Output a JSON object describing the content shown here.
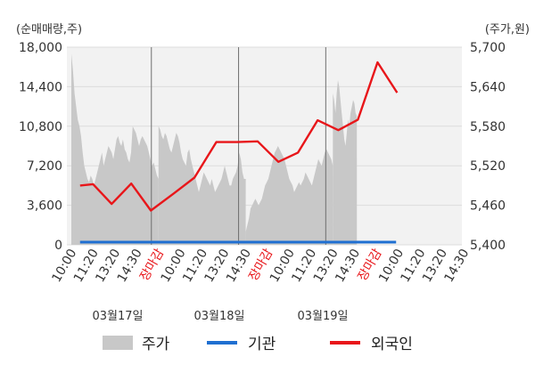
{
  "chart_data": {
    "type": "bar+line",
    "left_axis_label": "(순매매량,주)",
    "right_axis_label": "(주가,원)",
    "left_ticks": [
      "18,000",
      "14,400",
      "10,800",
      "7,200",
      "3,600",
      "0"
    ],
    "left_range": [
      0,
      18000
    ],
    "right_ticks": [
      "5,700",
      "5,640",
      "5,580",
      "5,520",
      "5,460",
      "5,400"
    ],
    "right_range": [
      5400,
      5700
    ],
    "x_ticks": [
      {
        "label": "10:00",
        "red": false
      },
      {
        "label": "11:20",
        "red": false
      },
      {
        "label": "13:20",
        "red": false
      },
      {
        "label": "14:30",
        "red": false
      },
      {
        "label": "장마감",
        "red": true
      },
      {
        "label": "10:00",
        "red": false
      },
      {
        "label": "11:20",
        "red": false
      },
      {
        "label": "13:20",
        "red": false
      },
      {
        "label": "14:30",
        "red": false
      },
      {
        "label": "장마감",
        "red": true
      },
      {
        "label": "10:00",
        "red": false
      },
      {
        "label": "11:20",
        "red": false
      },
      {
        "label": "13:20",
        "red": false
      },
      {
        "label": "14:30",
        "red": false
      },
      {
        "label": "장마감",
        "red": true
      },
      {
        "label": "10:00",
        "red": false
      },
      {
        "label": "11:20",
        "red": false
      },
      {
        "label": "13:20",
        "red": false
      },
      {
        "label": "14:30",
        "red": false
      }
    ],
    "date_labels": [
      "03월17일",
      "03월18일",
      "03월19일"
    ],
    "grid": true,
    "series": [
      {
        "name": "주가",
        "kind": "area",
        "color": "#c8c8c8",
        "days": [
          {
            "range": [
              0,
              4
            ],
            "values": [
              5690,
              5665,
              5630,
              5610,
              5590,
              5580,
              5565,
              5540,
              5520,
              5510,
              5500,
              5495,
              5505,
              5500,
              5490,
              5500,
              5510,
              5520,
              5530,
              5540,
              5520,
              5530,
              5540,
              5550,
              5545,
              5540,
              5530,
              5545,
              5560,
              5565,
              5555,
              5550,
              5560,
              5545,
              5540,
              5530,
              5525,
              5540,
              5580,
              5575,
              5570,
              5560,
              5550,
              5560,
              5565,
              5560,
              5555,
              5550,
              5540,
              5530,
              5520,
              5525,
              5515,
              5505,
              5500
            ]
          },
          {
            "range": [
              4,
              8
            ],
            "values": [
              5580,
              5575,
              5565,
              5560,
              5570,
              5565,
              5555,
              5545,
              5540,
              5550,
              5560,
              5570,
              5565,
              5555,
              5540,
              5530,
              5525,
              5520,
              5540,
              5545,
              5530,
              5520,
              5510,
              5500,
              5490,
              5480,
              5490,
              5500,
              5510,
              5505,
              5500,
              5495,
              5490,
              5500,
              5490,
              5480,
              5485,
              5490,
              5495,
              5500,
              5510,
              5520,
              5510,
              5500,
              5490,
              5490,
              5500,
              5505,
              5510,
              5520,
              5540,
              5530,
              5510,
              5500,
              5500
            ]
          },
          {
            "range": [
              8,
              12
            ],
            "values": [
              5420,
              5430,
              5440,
              5455,
              5460,
              5465,
              5470,
              5465,
              5460,
              5465,
              5470,
              5480,
              5490,
              5495,
              5500,
              5510,
              5520,
              5530,
              5540,
              5545,
              5550,
              5545,
              5540,
              5535,
              5530,
              5520,
              5510,
              5500,
              5495,
              5490,
              5480,
              5485,
              5490,
              5495,
              5490,
              5495,
              5500,
              5510,
              5505,
              5500,
              5495,
              5490,
              5500,
              5510,
              5520,
              5530,
              5525,
              5520,
              5530,
              5540,
              5545,
              5540,
              5535,
              5530,
              5520
            ]
          },
          {
            "range": [
              12,
              13.1
            ],
            "values": [
              5630,
              5620,
              5600,
              5630,
              5650,
              5640,
              5620,
              5600,
              5580,
              5560,
              5550,
              5570,
              5590,
              5580,
              5600,
              5610,
              5620,
              5615,
              5600,
              5595
            ]
          }
        ]
      },
      {
        "name": "기관",
        "kind": "line",
        "color": "#1f6fd1",
        "x": [
          0.4,
          14.9
        ],
        "values": [
          0,
          0
        ]
      },
      {
        "name": "외국인",
        "kind": "line",
        "color": "#e8161a",
        "x": [
          0.4,
          1.0,
          1.85,
          2.75,
          3.65,
          4.7,
          5.65,
          6.65,
          7.6,
          8.55,
          9.5,
          10.4,
          11.3,
          12.25,
          13.15,
          14.05,
          14.95
        ],
        "values": [
          5490,
          5492,
          5462,
          5493,
          5452,
          5478,
          5502,
          5556,
          5556,
          5557,
          5526,
          5540,
          5589,
          5574,
          5590,
          5677,
          5631
        ]
      }
    ]
  }
}
